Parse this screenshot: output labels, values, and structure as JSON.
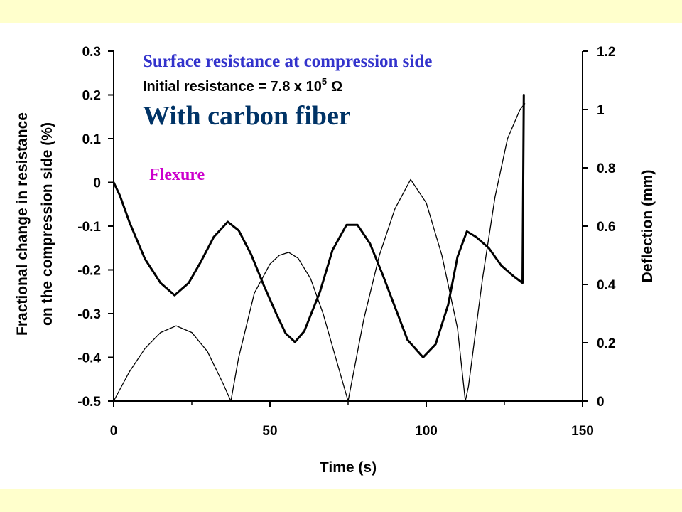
{
  "colors": {
    "background_band": "#ffffcc",
    "title_blue": "#3333cc",
    "carbon_blue": "#003366",
    "flexure_magenta": "#cc00cc",
    "line": "#000000"
  },
  "chart_data": {
    "type": "line",
    "title": "",
    "xlabel": "Time (s)",
    "ylabel_left_line1": "Fractional change in resistance",
    "ylabel_left_line2": "on the compression side (%)",
    "ylabel_right": "Deflection (mm)",
    "xlim": [
      0,
      150
    ],
    "ylim_left": [
      -0.5,
      0.3
    ],
    "ylim_right": [
      0,
      1.2
    ],
    "x_ticks": [
      "0",
      "50",
      "100",
      "150"
    ],
    "x_tick_values": [
      0,
      50,
      100,
      150
    ],
    "y_left_ticks": [
      "0.3",
      "0.2",
      "0.1",
      "0",
      "-0.1",
      "-0.2",
      "-0.3",
      "-0.4",
      "-0.5"
    ],
    "y_left_tick_values": [
      0.3,
      0.2,
      0.1,
      0,
      -0.1,
      -0.2,
      -0.3,
      -0.4,
      -0.5
    ],
    "y_right_ticks": [
      "1.2",
      "1",
      "0.8",
      "0.6",
      "0.4",
      "0.2",
      "0"
    ],
    "y_right_tick_values": [
      1.2,
      1.0,
      0.8,
      0.6,
      0.4,
      0.2,
      0
    ],
    "annotations": {
      "surface": "Surface resistance at compression side",
      "initial_prefix": "Initial resistance = 7.8 x 10",
      "initial_exp": "5",
      "initial_unit": "Ω",
      "carbon": "With carbon fiber",
      "flexure": "Flexure"
    },
    "series": [
      {
        "axis": "left",
        "style": "thick",
        "x": [
          0,
          2,
          5,
          10,
          15,
          19.5,
          24,
          28,
          32,
          36.5,
          40,
          44,
          48,
          52,
          55,
          58,
          61,
          66,
          70,
          74.5,
          78,
          82,
          86,
          90,
          94,
          99,
          103,
          107,
          110,
          113,
          116,
          120,
          124,
          128,
          130.8,
          131.2
        ],
        "y": [
          0,
          -0.03,
          -0.09,
          -0.175,
          -0.23,
          -0.258,
          -0.23,
          -0.18,
          -0.125,
          -0.09,
          -0.11,
          -0.165,
          -0.235,
          -0.3,
          -0.345,
          -0.365,
          -0.34,
          -0.25,
          -0.155,
          -0.097,
          -0.097,
          -0.14,
          -0.21,
          -0.285,
          -0.36,
          -0.4,
          -0.37,
          -0.28,
          -0.17,
          -0.112,
          -0.125,
          -0.15,
          -0.19,
          -0.215,
          -0.23,
          0.2
        ]
      },
      {
        "axis": "right",
        "style": "thin",
        "x": [
          0,
          5,
          10,
          15,
          20,
          25,
          30,
          35,
          37.5,
          40,
          45,
          50,
          53,
          56,
          59,
          63,
          67,
          71,
          75,
          80,
          85,
          90,
          95,
          100,
          105,
          110,
          112.5,
          113.5,
          118,
          122,
          126,
          130,
          131.5
        ],
        "y": [
          0,
          0.1,
          0.18,
          0.235,
          0.258,
          0.235,
          0.17,
          0.06,
          0,
          0.15,
          0.37,
          0.47,
          0.5,
          0.51,
          0.49,
          0.42,
          0.3,
          0.15,
          0,
          0.28,
          0.5,
          0.66,
          0.76,
          0.68,
          0.5,
          0.25,
          0,
          0.05,
          0.42,
          0.7,
          0.9,
          1.0,
          1.02
        ]
      }
    ]
  }
}
